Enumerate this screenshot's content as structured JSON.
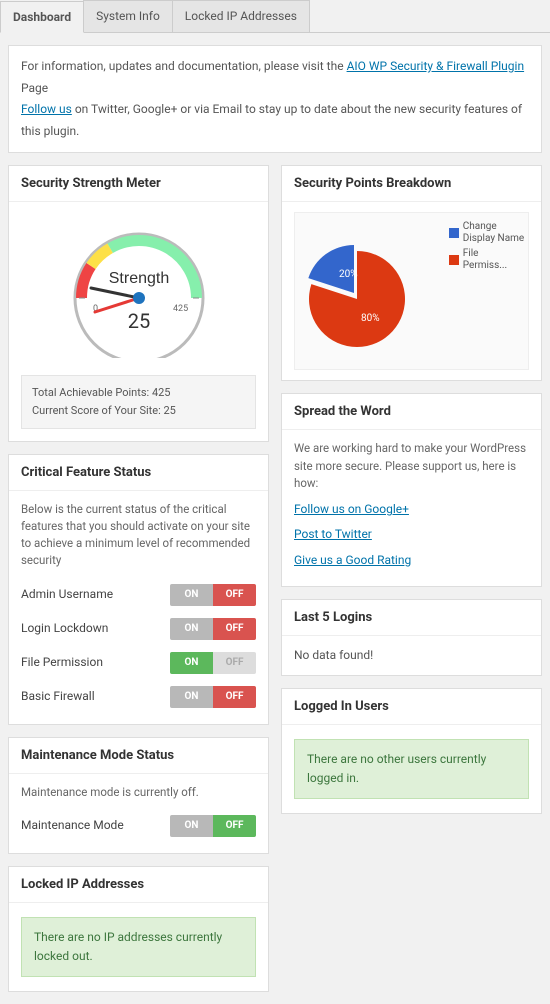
{
  "tabs": {
    "dashboard": "Dashboard",
    "system_info": "System Info",
    "locked_ips": "Locked IP Addresses"
  },
  "banner": {
    "line1_pre": "For information, updates and documentation, please visit the ",
    "line1_link": "AIO WP Security & Firewall Plugin",
    "line1_post": " Page",
    "line2_link": "Follow us",
    "line2_post": " on Twitter, Google+ or via Email to stay up to date about the new security features of this plugin."
  },
  "gauge": {
    "title": "Security Strength Meter",
    "label": "Strength",
    "score": 25,
    "scale_min": 0,
    "scale_max": 425,
    "stats_total_label": "Total Achievable Points: ",
    "stats_total_val": "425",
    "stats_current_label": "Current Score of Your Site: ",
    "stats_current_val": "25",
    "colors": {
      "low": "#ef4444",
      "mid": "#fde047",
      "high": "#86efac",
      "needle_main": "#333333",
      "needle_red": "#e53935",
      "hub": "#1e73be",
      "rim": "#bbbbbb"
    }
  },
  "breakdown": {
    "title": "Security Points Breakdown",
    "slices": [
      {
        "label": "Change Display Name",
        "pct": 20,
        "color": "#3366cc",
        "pct_label": "20%"
      },
      {
        "label": "File Permiss...",
        "pct": 80,
        "color": "#dc3912",
        "pct_label": "80%"
      }
    ]
  },
  "critical": {
    "title": "Critical Feature Status",
    "desc": "Below is the current status of the critical features that you should activate on your site to achieve a minimum level of recommended security",
    "items": [
      {
        "label": "Admin Username",
        "on": false
      },
      {
        "label": "Login Lockdown",
        "on": false
      },
      {
        "label": "File Permission",
        "on": true
      },
      {
        "label": "Basic Firewall",
        "on": false
      }
    ],
    "on_text": "ON",
    "off_text": "OFF"
  },
  "maintenance": {
    "title": "Maintenance Mode Status",
    "desc": "Maintenance mode is currently off.",
    "label": "Maintenance Mode",
    "on": false,
    "on_text": "ON",
    "off_text": "OFF"
  },
  "locked": {
    "title": "Locked IP Addresses",
    "msg": "There are no IP addresses currently locked out."
  },
  "spread": {
    "title": "Spread the Word",
    "desc": "We are working hard to make your WordPress site more secure. Please support us, here is how:",
    "links": [
      "Follow us on Google+",
      "Post to Twitter",
      "Give us a Good Rating"
    ]
  },
  "logins": {
    "title": "Last 5 Logins",
    "msg": "No data found!"
  },
  "logged_in": {
    "title": "Logged In Users",
    "msg": "There are no other users currently logged in."
  }
}
